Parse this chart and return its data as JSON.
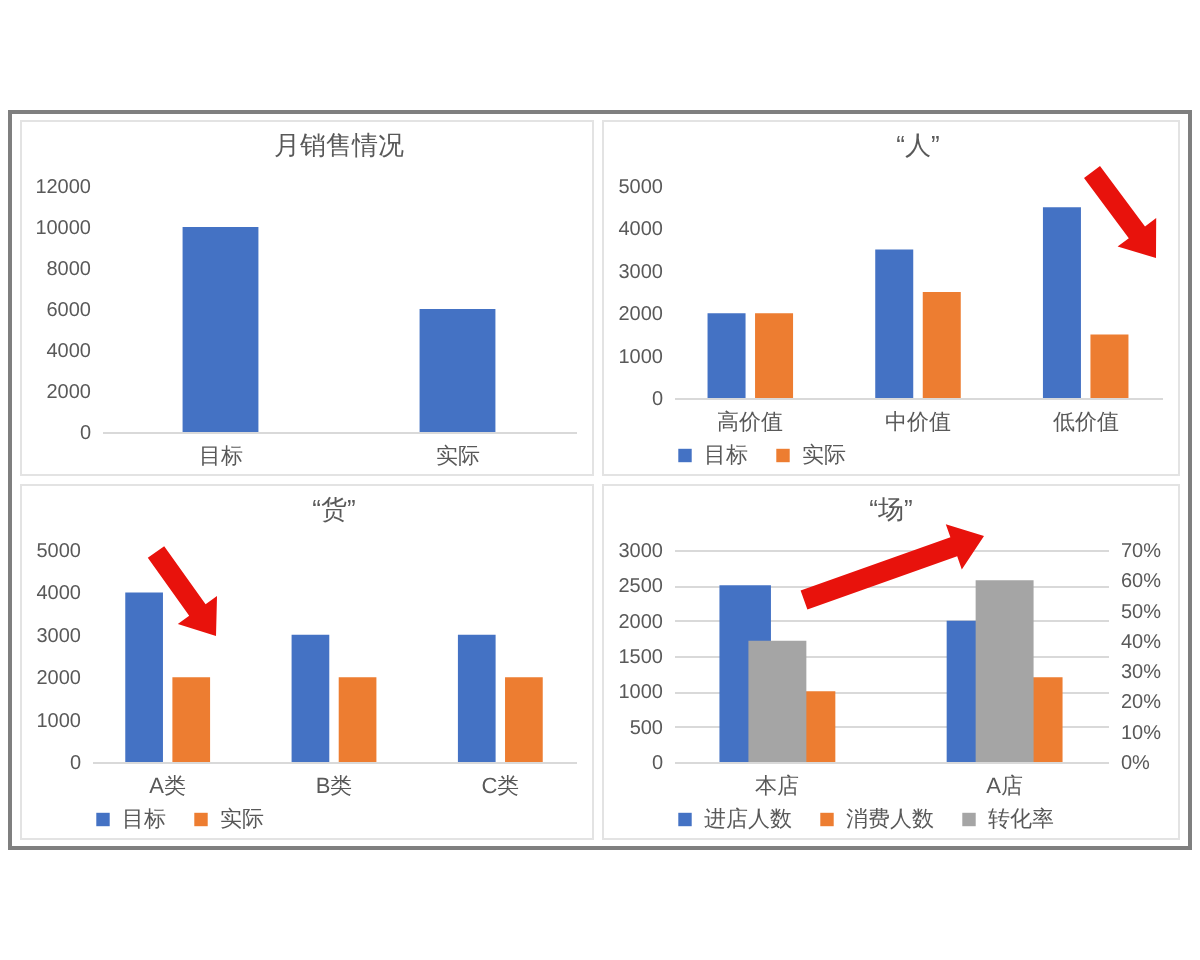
{
  "chart_data": [
    {
      "type": "bar",
      "title": "月销售情况",
      "categories": [
        "目标",
        "实际"
      ],
      "values": [
        10000,
        6000
      ],
      "color": "#4472c4",
      "ylim": [
        0,
        12000
      ],
      "yticks": [
        0,
        2000,
        4000,
        6000,
        8000,
        10000,
        12000
      ],
      "legend": false
    },
    {
      "type": "bar",
      "title": "“人”",
      "categories": [
        "高价值",
        "中价值",
        "低价值"
      ],
      "series": [
        {
          "name": "目标",
          "color": "#4472c4",
          "values": [
            2000,
            3500,
            4500
          ]
        },
        {
          "name": "实际",
          "color": "#ed7d31",
          "values": [
            2000,
            2500,
            1500
          ]
        }
      ],
      "ylim": [
        0,
        5000
      ],
      "yticks": [
        0,
        1000,
        2000,
        3000,
        4000,
        5000
      ],
      "legend": "bottom"
    },
    {
      "type": "bar",
      "title": "“货”",
      "categories": [
        "A类",
        "B类",
        "C类"
      ],
      "series": [
        {
          "name": "目标",
          "color": "#4472c4",
          "values": [
            4000,
            3000,
            3000
          ]
        },
        {
          "name": "实际",
          "color": "#ed7d31",
          "values": [
            2000,
            2000,
            2000
          ]
        }
      ],
      "ylim": [
        0,
        5000
      ],
      "yticks": [
        0,
        1000,
        2000,
        3000,
        4000,
        5000
      ],
      "legend": "bottom"
    },
    {
      "type": "bar",
      "title": "“场”",
      "categories": [
        "本店",
        "A店"
      ],
      "series": [
        {
          "name": "进店人数",
          "color": "#4472c4",
          "values": [
            2500,
            2000
          ]
        },
        {
          "name": "消费人数",
          "color": "#ed7d31",
          "values": [
            1000,
            1200
          ]
        },
        {
          "name": "转化率",
          "color": "#a5a5a5",
          "values": [
            40,
            60
          ],
          "axis": "y2"
        }
      ],
      "ylim": [
        0,
        3000
      ],
      "yticks": [
        0,
        500,
        1000,
        1500,
        2000,
        2500,
        3000
      ],
      "y2lim": [
        0,
        70
      ],
      "y2ticks": [
        {
          "value": 0,
          "label": "0%"
        },
        {
          "value": 10,
          "label": "10%"
        },
        {
          "value": 20,
          "label": "20%"
        },
        {
          "value": 30,
          "label": "30%"
        },
        {
          "value": 40,
          "label": "40%"
        },
        {
          "value": 50,
          "label": "50%"
        },
        {
          "value": 60,
          "label": "60%"
        },
        {
          "value": 70,
          "label": "70%"
        }
      ],
      "grid": "y",
      "legend": "bottom"
    }
  ]
}
